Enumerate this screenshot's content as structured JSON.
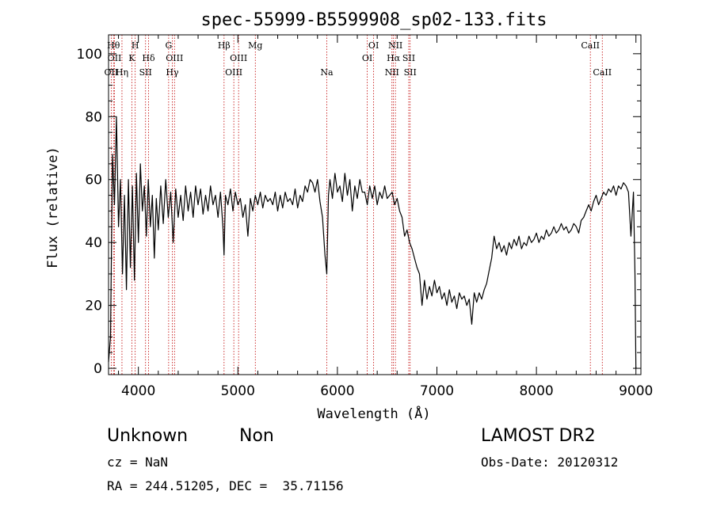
{
  "header": {
    "title": "spec-55999-B5599908_sp02-133.fits"
  },
  "footer": {
    "class_label": "Unknown",
    "subclass_label": "Non",
    "survey": "LAMOST DR2",
    "cz": "cz = NaN",
    "obs_date": "Obs-Date: 20120312",
    "coords": "RA = 244.51205, DEC =  35.71156"
  },
  "chart_data": {
    "type": "line",
    "title": "spec-55999-B5599908_sp02-133.fits",
    "xlabel": "Wavelength (Å)",
    "ylabel": "Flux (relative)",
    "xlim": [
      3700,
      9050
    ],
    "ylim": [
      -2,
      106
    ],
    "xticks": [
      4000,
      5000,
      6000,
      7000,
      8000,
      9000
    ],
    "xtick_labels": [
      "4000",
      "5000",
      "6000",
      "7000",
      "8000",
      "9000"
    ],
    "yticks": [
      0,
      20,
      40,
      60,
      80,
      100
    ],
    "ytick_labels": [
      "0",
      "20",
      "40",
      "60",
      "80",
      "100"
    ],
    "line_color": "#000000",
    "marker_color": "#c00000",
    "series": [
      {
        "x": [
          3700,
          3720,
          3740,
          3760,
          3780,
          3800,
          3820,
          3840,
          3860,
          3880,
          3900,
          3920,
          3940,
          3960,
          3980,
          4000,
          4020,
          4040,
          4060,
          4080,
          4100,
          4120,
          4140,
          4160,
          4180,
          4200,
          4225,
          4250,
          4275,
          4300,
          4325,
          4350,
          4375,
          4400,
          4425,
          4450,
          4475,
          4500,
          4525,
          4550,
          4575,
          4600,
          4625,
          4650,
          4675,
          4700,
          4725,
          4750,
          4775,
          4800,
          4825,
          4850,
          4861,
          4875,
          4900,
          4925,
          4950,
          4975,
          5000,
          5025,
          5050,
          5075,
          5100,
          5125,
          5150,
          5175,
          5200,
          5225,
          5250,
          5275,
          5300,
          5325,
          5350,
          5375,
          5400,
          5425,
          5450,
          5475,
          5500,
          5525,
          5550,
          5575,
          5600,
          5625,
          5650,
          5675,
          5700,
          5725,
          5750,
          5775,
          5800,
          5825,
          5850,
          5875,
          5893,
          5910,
          5925,
          5950,
          5975,
          6000,
          6025,
          6050,
          6075,
          6100,
          6125,
          6150,
          6175,
          6200,
          6225,
          6250,
          6275,
          6300,
          6325,
          6350,
          6375,
          6400,
          6425,
          6450,
          6475,
          6500,
          6525,
          6550,
          6575,
          6600,
          6625,
          6650,
          6675,
          6700,
          6725,
          6750,
          6775,
          6800,
          6825,
          6850,
          6875,
          6900,
          6925,
          6950,
          6975,
          7000,
          7025,
          7050,
          7075,
          7100,
          7125,
          7150,
          7175,
          7200,
          7225,
          7250,
          7275,
          7300,
          7325,
          7350,
          7375,
          7400,
          7425,
          7450,
          7475,
          7500,
          7525,
          7550,
          7575,
          7600,
          7625,
          7650,
          7675,
          7700,
          7725,
          7750,
          7775,
          7800,
          7825,
          7850,
          7875,
          7900,
          7925,
          7950,
          7975,
          8000,
          8025,
          8050,
          8075,
          8100,
          8125,
          8150,
          8175,
          8200,
          8225,
          8250,
          8275,
          8300,
          8325,
          8350,
          8375,
          8400,
          8425,
          8450,
          8475,
          8500,
          8525,
          8550,
          8575,
          8600,
          8625,
          8650,
          8675,
          8700,
          8725,
          8750,
          8775,
          8800,
          8825,
          8850,
          8875,
          8900,
          8925,
          8950,
          8975,
          8990,
          9000
        ],
        "y": [
          2,
          10,
          68,
          52,
          80,
          45,
          60,
          30,
          55,
          25,
          60,
          32,
          58,
          28,
          62,
          40,
          65,
          50,
          58,
          42,
          60,
          45,
          55,
          35,
          54,
          44,
          58,
          46,
          60,
          48,
          56,
          40,
          57,
          48,
          55,
          47,
          58,
          50,
          56,
          48,
          58,
          52,
          57,
          49,
          55,
          50,
          58,
          52,
          55,
          48,
          56,
          45,
          36,
          55,
          52,
          57,
          50,
          56,
          52,
          54,
          48,
          52,
          42,
          54,
          50,
          55,
          52,
          56,
          51,
          55,
          53,
          54,
          52,
          56,
          50,
          55,
          51,
          56,
          53,
          54,
          52,
          57,
          51,
          55,
          53,
          58,
          56,
          60,
          59,
          56,
          60,
          53,
          48,
          36,
          30,
          55,
          60,
          54,
          62,
          56,
          58,
          53,
          62,
          55,
          60,
          50,
          58,
          54,
          60,
          56,
          56,
          52,
          58,
          54,
          58,
          52,
          56,
          54,
          58,
          54,
          55,
          56,
          52,
          54,
          50,
          48,
          42,
          44,
          40,
          38,
          35,
          32,
          30,
          20,
          28,
          22,
          26,
          23,
          28,
          24,
          26,
          22,
          24,
          20,
          25,
          21,
          23,
          19,
          24,
          22,
          23,
          20,
          22,
          14,
          24,
          21,
          24,
          22,
          25,
          27,
          31,
          35,
          42,
          38,
          40,
          37,
          39,
          36,
          40,
          38,
          41,
          39,
          42,
          38,
          40,
          39,
          42,
          40,
          41,
          43,
          40,
          42,
          41,
          44,
          42,
          43,
          45,
          43,
          44,
          46,
          44,
          45,
          43,
          44,
          46,
          45,
          43,
          47,
          48,
          50,
          52,
          50,
          53,
          55,
          52,
          54,
          56,
          55,
          57,
          56,
          58,
          55,
          58,
          57,
          59,
          58,
          56,
          42,
          56,
          30,
          0
        ]
      }
    ],
    "lines": [
      {
        "x": 3727,
        "label": "OII",
        "row": 3
      },
      {
        "x": 3750,
        "label": "Hθ",
        "row": 1
      },
      {
        "x": 3760,
        "label": "OII",
        "row": 2
      },
      {
        "x": 3835,
        "label": "Hη",
        "row": 3
      },
      {
        "x": 3934,
        "label": "K",
        "row": 2
      },
      {
        "x": 3968,
        "label": "H",
        "row": 1
      },
      {
        "x": 4072,
        "label": "SII",
        "row": 3
      },
      {
        "x": 4102,
        "label": "Hδ",
        "row": 2
      },
      {
        "x": 4304,
        "label": "G",
        "row": 1
      },
      {
        "x": 4341,
        "label": "Hγ",
        "row": 3
      },
      {
        "x": 4363,
        "label": "OIII",
        "row": 2
      },
      {
        "x": 4861,
        "label": "Hβ",
        "row": 1
      },
      {
        "x": 4959,
        "label": "OIII",
        "row": 3
      },
      {
        "x": 5007,
        "label": "OIII",
        "row": 2
      },
      {
        "x": 5175,
        "label": "Mg",
        "row": 1
      },
      {
        "x": 5893,
        "label": "Na",
        "row": 3
      },
      {
        "x": 6300,
        "label": "OI",
        "row": 2
      },
      {
        "x": 6364,
        "label": "OI",
        "row": 1
      },
      {
        "x": 6548,
        "label": "NII",
        "row": 3
      },
      {
        "x": 6563,
        "label": "Hα",
        "row": 2
      },
      {
        "x": 6583,
        "label": "NII",
        "row": 1
      },
      {
        "x": 6717,
        "label": "SII",
        "row": 2
      },
      {
        "x": 6731,
        "label": "SII",
        "row": 3
      },
      {
        "x": 8542,
        "label": "CaII",
        "row": 1
      },
      {
        "x": 8662,
        "label": "CaII",
        "row": 3
      }
    ]
  }
}
